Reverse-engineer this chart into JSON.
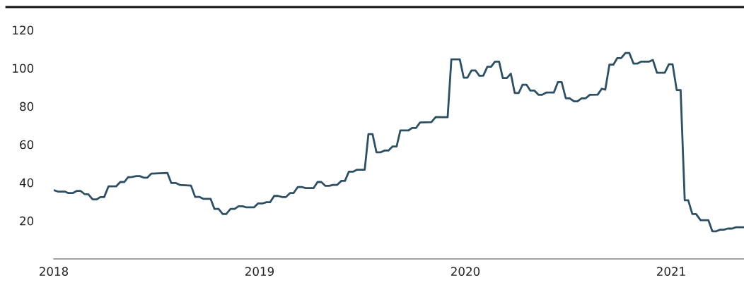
{
  "chart_data": {
    "type": "line",
    "marker": "none",
    "line_style": "solid",
    "grid": false,
    "xlim": [
      2018,
      2021.354
    ],
    "xticks": [
      2018,
      2019,
      2020,
      2021
    ],
    "ylim": [
      0,
      132
    ],
    "yticks": [
      20,
      40,
      60,
      80,
      100,
      120
    ],
    "series": [
      {
        "color": "#2d4f63",
        "x": [
          2018.0,
          2018.02,
          2018.054,
          2018.071,
          2018.092,
          2018.111,
          2018.131,
          2018.149,
          2018.168,
          2018.189,
          2018.209,
          2018.226,
          2018.245,
          2018.266,
          2018.303,
          2018.323,
          2018.343,
          2018.361,
          2018.38,
          2018.401,
          2018.418,
          2018.437,
          2018.455,
          2018.474,
          2018.495,
          2018.552,
          2018.571,
          2018.592,
          2018.612,
          2018.667,
          2018.687,
          2018.707,
          2018.726,
          2018.762,
          2018.781,
          2018.801,
          2018.821,
          2018.838,
          2018.859,
          2018.879,
          2018.898,
          2018.918,
          2018.936,
          2018.973,
          2018.993,
          2019.016,
          2019.033,
          2019.051,
          2019.071,
          2019.09,
          2019.111,
          2019.128,
          2019.148,
          2019.165,
          2019.186,
          2019.205,
          2019.224,
          2019.262,
          2019.282,
          2019.3,
          2019.32,
          2019.339,
          2019.357,
          2019.377,
          2019.398,
          2019.415,
          2019.434,
          2019.454,
          2019.472,
          2019.511,
          2019.529,
          2019.549,
          2019.568,
          2019.589,
          2019.608,
          2019.626,
          2019.646,
          2019.666,
          2019.684,
          2019.723,
          2019.741,
          2019.76,
          2019.78,
          2019.835,
          2019.856,
          2019.914,
          2019.932,
          2019.973,
          2019.992,
          2020.01,
          2020.03,
          2020.049,
          2020.068,
          2020.087,
          2020.107,
          2020.125,
          2020.144,
          2020.164,
          2020.182,
          2020.202,
          2020.221,
          2020.24,
          2020.259,
          2020.278,
          2020.297,
          2020.316,
          2020.336,
          2020.356,
          2020.373,
          2020.393,
          2020.43,
          2020.45,
          2020.468,
          2020.488,
          2020.507,
          2020.528,
          2020.545,
          2020.565,
          2020.585,
          2020.605,
          2020.643,
          2020.663,
          2020.68,
          2020.7,
          2020.719,
          2020.738,
          2020.757,
          2020.778,
          2020.797,
          2020.817,
          2020.837,
          2020.855,
          2020.894,
          2020.911,
          2020.931,
          2020.969,
          2020.989,
          2021.007,
          2021.027,
          2021.046,
          2021.066,
          2021.083,
          2021.103,
          2021.121,
          2021.143,
          2021.181,
          2021.2,
          2021.219,
          2021.238,
          2021.256,
          2021.275,
          2021.296,
          2021.315,
          2021.354
        ],
        "values": [
          36.0,
          35.3,
          35.3,
          34.5,
          34.5,
          35.6,
          35.6,
          34.0,
          33.9,
          31.2,
          31.2,
          32.4,
          32.4,
          38.0,
          38.0,
          40.3,
          40.3,
          42.8,
          42.9,
          43.4,
          43.4,
          42.6,
          42.6,
          44.7,
          44.8,
          45.1,
          39.8,
          39.8,
          38.8,
          38.4,
          32.5,
          32.5,
          31.5,
          31.5,
          26.2,
          26.2,
          23.5,
          23.5,
          26.2,
          26.2,
          27.6,
          27.6,
          27.0,
          27.0,
          29.1,
          29.1,
          29.7,
          29.7,
          33.0,
          33.0,
          32.4,
          32.4,
          34.5,
          34.5,
          37.7,
          37.7,
          37.1,
          37.1,
          40.3,
          40.3,
          38.3,
          38.3,
          38.8,
          38.8,
          40.9,
          40.9,
          45.7,
          45.7,
          46.7,
          46.7,
          65.4,
          65.4,
          55.9,
          55.9,
          56.8,
          56.8,
          58.9,
          58.9,
          67.3,
          67.3,
          68.6,
          68.6,
          71.5,
          71.7,
          74.4,
          74.3,
          104.6,
          104.6,
          95.0,
          95.0,
          98.8,
          98.8,
          96.0,
          96.0,
          100.7,
          100.7,
          103.4,
          103.4,
          94.8,
          94.8,
          97.1,
          86.9,
          86.9,
          91.3,
          91.3,
          88.2,
          88.2,
          86.0,
          86.0,
          87.2,
          87.2,
          92.7,
          92.7,
          84.2,
          84.2,
          82.6,
          82.6,
          84.2,
          84.2,
          86.0,
          86.1,
          89.2,
          88.7,
          101.8,
          101.8,
          105.2,
          105.2,
          107.9,
          107.9,
          102.4,
          102.4,
          103.4,
          103.4,
          104.3,
          97.6,
          97.6,
          102.0,
          102.0,
          88.5,
          88.5,
          30.7,
          30.7,
          23.5,
          23.5,
          20.3,
          20.3,
          14.5,
          14.5,
          15.3,
          15.3,
          15.9,
          15.9,
          16.6,
          16.6
        ]
      }
    ]
  }
}
